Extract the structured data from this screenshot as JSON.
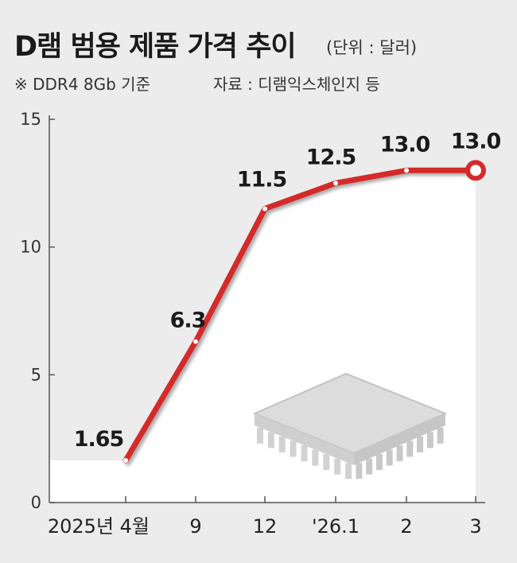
{
  "header": {
    "title": "D램 범용 제품 가격 추이",
    "unit": "(단위 : 달러)",
    "note": "※ DDR4 8Gb 기준",
    "source": "자료 : 디램익스체인지 등"
  },
  "chart_data": {
    "type": "line",
    "categories": [
      "2025년 4월",
      "9",
      "12",
      "'26.1",
      "2",
      "3"
    ],
    "values": [
      1.65,
      6.3,
      11.5,
      12.5,
      13.0,
      13.0
    ],
    "data_labels": [
      "1.65",
      "6.3",
      "11.5",
      "12.5",
      "13.0",
      "13.0"
    ],
    "yticks": [
      "0",
      "5",
      "10",
      "15"
    ],
    "ylim": [
      0,
      15
    ],
    "line_color": "#d42a2a",
    "grid": false
  }
}
